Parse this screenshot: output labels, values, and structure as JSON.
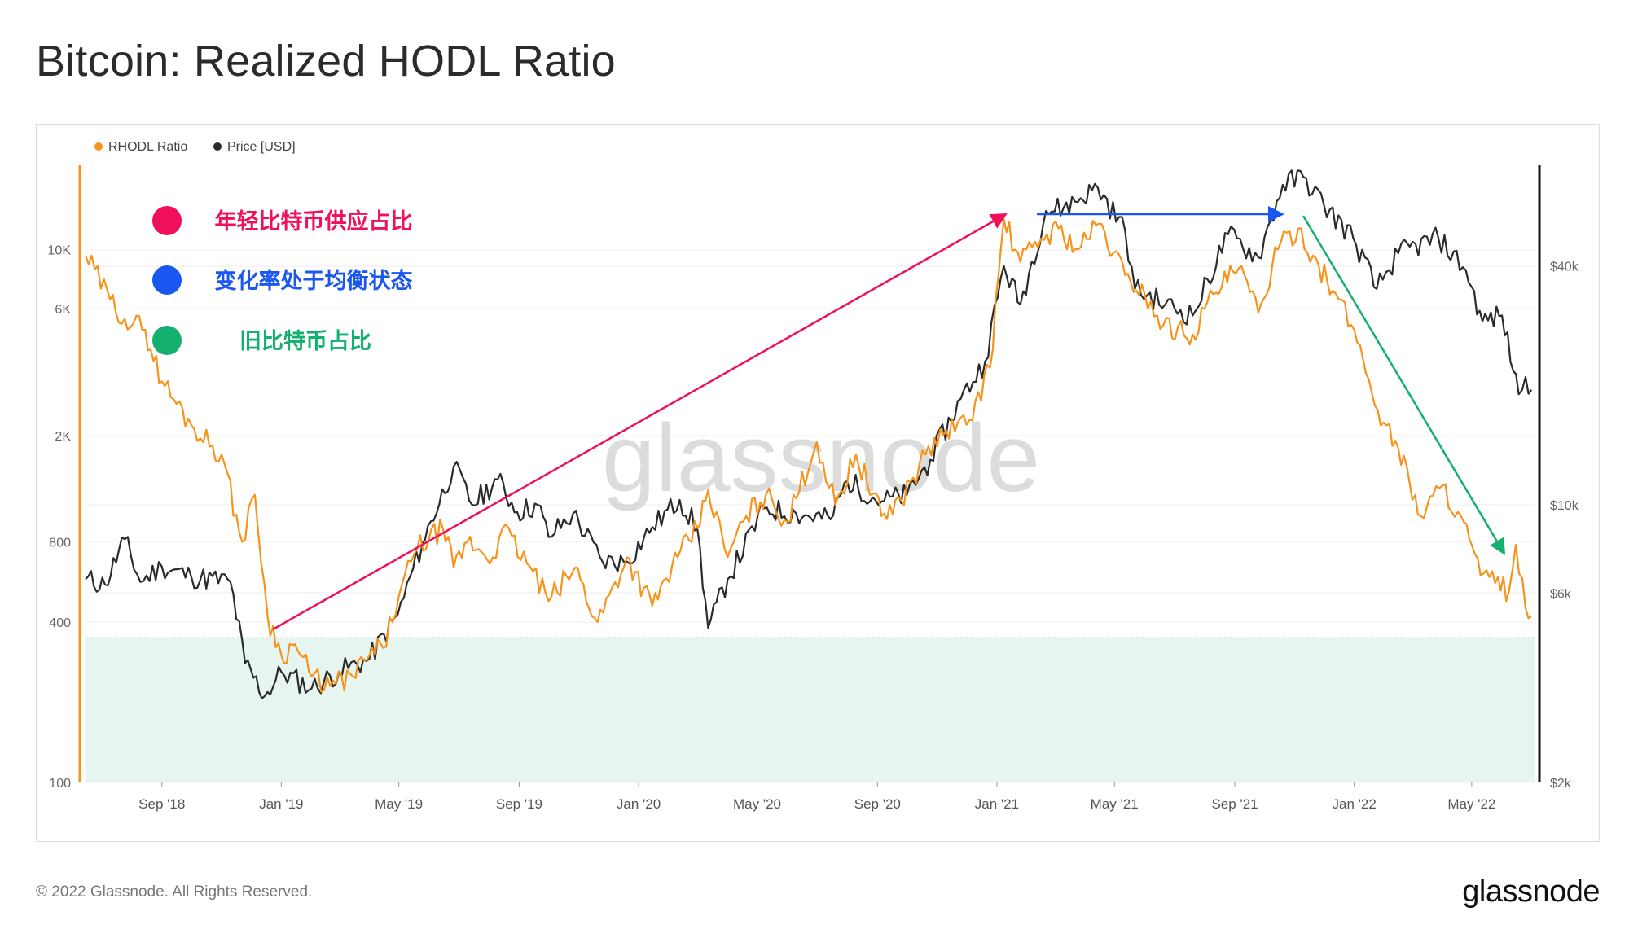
{
  "title": "Bitcoin: Realized HODL Ratio",
  "footer": {
    "copyright": "© 2022 Glassnode. All Rights Reserved.",
    "logo": "glassnode"
  },
  "watermark": "glassnode",
  "colors": {
    "rhodl": "#f7931a",
    "price": "#2b2b2b",
    "zone": "#e6f5ef",
    "annotation_pink": "#f0105a",
    "annotation_blue": "#1a56f0",
    "annotation_green": "#13b06f"
  },
  "annotations": [
    {
      "label": "年轻比特币供应占比",
      "color": "#f0105a"
    },
    {
      "label": "变化率处于均衡状态",
      "color": "#1a56f0"
    },
    {
      "label": "旧比特币占比",
      "color": "#13b06f"
    }
  ],
  "chart_data": {
    "type": "line",
    "x_tick_labels": [
      "Sep '18",
      "Jan '19",
      "May '19",
      "Sep '19",
      "Jan '20",
      "May '20",
      "Sep '20",
      "Jan '21",
      "May '21",
      "Sep '21",
      "Jan '22",
      "May '22"
    ],
    "x_range": [
      "2018-06-15",
      "2022-07-05"
    ],
    "left_axis": {
      "scale": "log",
      "range": [
        100,
        20000
      ],
      "ticks": [
        100,
        400,
        800,
        2000,
        6000,
        10000
      ],
      "tick_labels": [
        "100",
        "400",
        "800",
        "2K",
        "6K",
        "10K"
      ]
    },
    "right_axis": {
      "scale": "log",
      "range": [
        2000,
        70000
      ],
      "ticks": [
        2000,
        6000,
        10000,
        40000
      ],
      "tick_labels": [
        "$2k",
        "$6k",
        "$10k",
        "$40k"
      ]
    },
    "legend_position": "top-left",
    "shaded_zone": {
      "axis": "left",
      "from": 100,
      "to": 350
    },
    "series": [
      {
        "name": "RHODL Ratio",
        "axis": "left",
        "color": "#f7931a",
        "points": [
          [
            "2018-06-15",
            9500
          ],
          [
            "2018-07-10",
            6500
          ],
          [
            "2018-07-25",
            5500
          ],
          [
            "2018-08-15",
            5000
          ],
          [
            "2018-09-01",
            3200
          ],
          [
            "2018-10-01",
            2200
          ],
          [
            "2018-11-01",
            1700
          ],
          [
            "2018-11-22",
            800
          ],
          [
            "2018-12-05",
            1200
          ],
          [
            "2018-12-18",
            420
          ],
          [
            "2019-01-01",
            300
          ],
          [
            "2019-01-15",
            330
          ],
          [
            "2019-02-01",
            250
          ],
          [
            "2019-02-20",
            230
          ],
          [
            "2019-03-15",
            250
          ],
          [
            "2019-04-01",
            300
          ],
          [
            "2019-04-15",
            320
          ],
          [
            "2019-05-01",
            500
          ],
          [
            "2019-05-20",
            760
          ],
          [
            "2019-06-15",
            900
          ],
          [
            "2019-06-26",
            640
          ],
          [
            "2019-07-10",
            800
          ],
          [
            "2019-08-05",
            700
          ],
          [
            "2019-08-15",
            900
          ],
          [
            "2019-09-15",
            620
          ],
          [
            "2019-10-01",
            480
          ],
          [
            "2019-10-28",
            640
          ],
          [
            "2019-11-20",
            400
          ],
          [
            "2019-12-20",
            700
          ],
          [
            "2020-01-15",
            460
          ],
          [
            "2020-02-10",
            700
          ],
          [
            "2020-03-01",
            900
          ],
          [
            "2020-03-12",
            1250
          ],
          [
            "2020-04-01",
            700
          ],
          [
            "2020-04-20",
            1000
          ],
          [
            "2020-05-10",
            1200
          ],
          [
            "2020-06-01",
            950
          ],
          [
            "2020-07-01",
            1900
          ],
          [
            "2020-07-20",
            1100
          ],
          [
            "2020-08-10",
            1700
          ],
          [
            "2020-09-05",
            1000
          ],
          [
            "2020-09-25",
            1150
          ],
          [
            "2020-10-20",
            1700
          ],
          [
            "2020-11-10",
            2100
          ],
          [
            "2020-12-01",
            2200
          ],
          [
            "2020-12-25",
            3600
          ],
          [
            "2021-01-08",
            13000
          ],
          [
            "2021-01-25",
            9000
          ],
          [
            "2021-02-15",
            11000
          ],
          [
            "2021-03-05",
            12000
          ],
          [
            "2021-03-25",
            10000
          ],
          [
            "2021-04-15",
            12500
          ],
          [
            "2021-05-12",
            8000
          ],
          [
            "2021-06-01",
            6800
          ],
          [
            "2021-06-20",
            5200
          ],
          [
            "2021-07-20",
            4800
          ],
          [
            "2021-08-10",
            6800
          ],
          [
            "2021-09-05",
            8500
          ],
          [
            "2021-09-25",
            5800
          ],
          [
            "2021-10-15",
            10000
          ],
          [
            "2021-11-05",
            12000
          ],
          [
            "2021-11-20",
            9500
          ],
          [
            "2021-12-10",
            7000
          ],
          [
            "2022-01-01",
            5000
          ],
          [
            "2022-01-25",
            2500
          ],
          [
            "2022-02-15",
            1800
          ],
          [
            "2022-03-10",
            1000
          ],
          [
            "2022-04-01",
            1300
          ],
          [
            "2022-04-20",
            1000
          ],
          [
            "2022-05-10",
            600
          ],
          [
            "2022-05-25",
            560
          ],
          [
            "2022-06-08",
            520
          ],
          [
            "2022-06-15",
            780
          ],
          [
            "2022-06-25",
            450
          ],
          [
            "2022-07-01",
            420
          ]
        ]
      },
      {
        "name": "Price [USD]",
        "axis": "right",
        "color": "#2b2b2b",
        "points": [
          [
            "2018-06-15",
            6500
          ],
          [
            "2018-07-05",
            6300
          ],
          [
            "2018-07-25",
            8200
          ],
          [
            "2018-08-10",
            6400
          ],
          [
            "2018-09-01",
            7000
          ],
          [
            "2018-10-01",
            6600
          ],
          [
            "2018-11-10",
            6400
          ],
          [
            "2018-11-25",
            4000
          ],
          [
            "2018-12-15",
            3300
          ],
          [
            "2019-01-01",
            3800
          ],
          [
            "2019-02-01",
            3450
          ],
          [
            "2019-03-01",
            3800
          ],
          [
            "2019-04-01",
            4100
          ],
          [
            "2019-04-30",
            5300
          ],
          [
            "2019-05-25",
            8000
          ],
          [
            "2019-06-26",
            12500
          ],
          [
            "2019-07-15",
            10000
          ],
          [
            "2019-08-10",
            11600
          ],
          [
            "2019-08-30",
            9600
          ],
          [
            "2019-09-20",
            10000
          ],
          [
            "2019-10-01",
            8300
          ],
          [
            "2019-10-26",
            9500
          ],
          [
            "2019-11-25",
            7200
          ],
          [
            "2019-12-20",
            7200
          ],
          [
            "2020-01-15",
            8800
          ],
          [
            "2020-02-12",
            10300
          ],
          [
            "2020-03-01",
            8700
          ],
          [
            "2020-03-12",
            4900
          ],
          [
            "2020-04-01",
            6500
          ],
          [
            "2020-05-08",
            9800
          ],
          [
            "2020-06-10",
            9500
          ],
          [
            "2020-07-15",
            9200
          ],
          [
            "2020-08-01",
            11500
          ],
          [
            "2020-09-05",
            10200
          ],
          [
            "2020-10-01",
            10600
          ],
          [
            "2020-10-25",
            13000
          ],
          [
            "2020-11-25",
            18500
          ],
          [
            "2020-12-20",
            23000
          ],
          [
            "2021-01-08",
            40000
          ],
          [
            "2021-01-25",
            32000
          ],
          [
            "2021-02-20",
            55000
          ],
          [
            "2021-03-10",
            56000
          ],
          [
            "2021-04-14",
            63000
          ],
          [
            "2021-05-12",
            49000
          ],
          [
            "2021-05-22",
            35000
          ],
          [
            "2021-06-22",
            32000
          ],
          [
            "2021-07-20",
            30000
          ],
          [
            "2021-08-25",
            48000
          ],
          [
            "2021-09-25",
            42000
          ],
          [
            "2021-10-20",
            64000
          ],
          [
            "2021-11-10",
            67000
          ],
          [
            "2021-12-01",
            57000
          ],
          [
            "2021-12-31",
            47000
          ],
          [
            "2022-01-24",
            35000
          ],
          [
            "2022-02-15",
            43000
          ],
          [
            "2022-03-28",
            47000
          ],
          [
            "2022-04-25",
            39000
          ],
          [
            "2022-05-12",
            29000
          ],
          [
            "2022-06-01",
            30000
          ],
          [
            "2022-06-18",
            19000
          ],
          [
            "2022-06-25",
            21000
          ],
          [
            "2022-07-01",
            19500
          ]
        ]
      }
    ]
  }
}
